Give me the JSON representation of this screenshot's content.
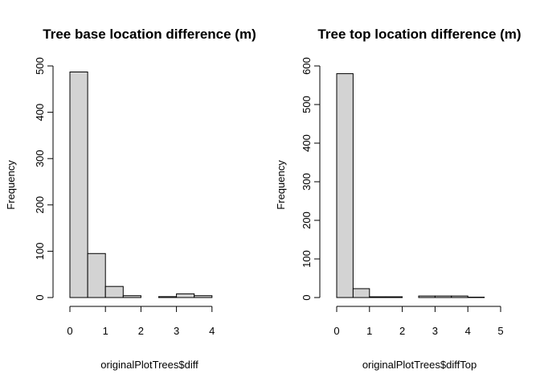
{
  "chart_data": [
    {
      "type": "bar",
      "title": "Tree base location difference (m)",
      "xlabel": "originalPlotTrees$diff",
      "ylabel": "Frequency",
      "bin_edges": [
        0,
        0.5,
        1,
        1.5,
        2,
        2.5,
        3,
        3.5,
        4,
        4.5
      ],
      "values": [
        487,
        95,
        24,
        4,
        0,
        2,
        8,
        4,
        0
      ],
      "xlim": [
        0,
        4.5
      ],
      "ylim": [
        0,
        500
      ],
      "xticks": [
        "0",
        "1",
        "2",
        "3",
        "4"
      ],
      "yticks": [
        "0",
        "100",
        "200",
        "300",
        "400",
        "500"
      ],
      "bar_color": "#d3d3d3"
    },
    {
      "type": "bar",
      "title": "Tree top location difference (m)",
      "xlabel": "originalPlotTrees$diffTop",
      "ylabel": "Frequency",
      "bin_edges": [
        0,
        0.5,
        1,
        1.5,
        2,
        2.5,
        3,
        3.5,
        4,
        4.5,
        5
      ],
      "values": [
        580,
        23,
        2,
        2,
        0,
        4,
        4,
        4,
        1,
        0
      ],
      "xlim": [
        0,
        5
      ],
      "ylim": [
        0,
        600
      ],
      "xticks": [
        "0",
        "1",
        "2",
        "3",
        "4",
        "5"
      ],
      "yticks": [
        "0",
        "100",
        "200",
        "300",
        "400",
        "500",
        "600"
      ],
      "bar_color": "#d3d3d3"
    }
  ]
}
